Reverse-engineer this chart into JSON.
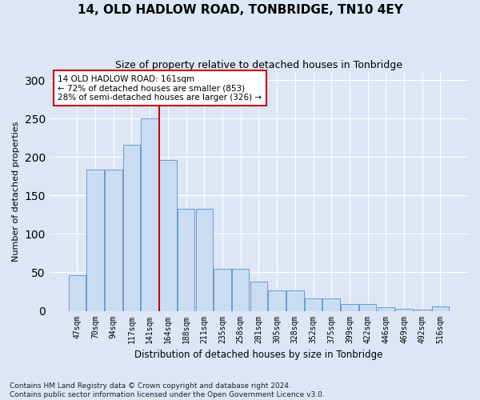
{
  "title": "14, OLD HADLOW ROAD, TONBRIDGE, TN10 4EY",
  "subtitle": "Size of property relative to detached houses in Tonbridge",
  "xlabel": "Distribution of detached houses by size in Tonbridge",
  "ylabel": "Number of detached properties",
  "categories": [
    "47sqm",
    "70sqm",
    "94sqm",
    "117sqm",
    "141sqm",
    "164sqm",
    "188sqm",
    "211sqm",
    "235sqm",
    "258sqm",
    "281sqm",
    "305sqm",
    "328sqm",
    "352sqm",
    "375sqm",
    "399sqm",
    "422sqm",
    "446sqm",
    "469sqm",
    "492sqm",
    "516sqm"
  ],
  "values": [
    46,
    184,
    184,
    216,
    250,
    196,
    133,
    133,
    55,
    55,
    38,
    27,
    27,
    16,
    16,
    9,
    9,
    5,
    3,
    2,
    6
  ],
  "bar_color": "#c9ddf2",
  "bar_edge_color": "#5b8fc9",
  "vline_index": 5,
  "vline_color": "#cc0000",
  "marker_label": "14 OLD HADLOW ROAD: 161sqm",
  "annotation_line1": "← 72% of detached houses are smaller (853)",
  "annotation_line2": "28% of semi-detached houses are larger (326) →",
  "annotation_box_facecolor": "#ffffff",
  "annotation_box_edgecolor": "#cc0000",
  "ylim": [
    0,
    310
  ],
  "bg_color": "#dce6f5",
  "grid_color": "#ffffff",
  "title_fontsize": 11,
  "subtitle_fontsize": 9,
  "tick_fontsize": 7,
  "ylabel_fontsize": 8,
  "xlabel_fontsize": 8.5,
  "footnote1": "Contains HM Land Registry data © Crown copyright and database right 2024.",
  "footnote2": "Contains public sector information licensed under the Open Government Licence v3.0.",
  "footnote_fontsize": 6.5
}
